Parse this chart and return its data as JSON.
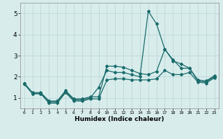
{
  "xlabel": "Humidex (Indice chaleur)",
  "xlim": [
    -0.5,
    23.5
  ],
  "ylim": [
    0.5,
    5.5
  ],
  "yticks": [
    1,
    2,
    3,
    4,
    5
  ],
  "xticks": [
    0,
    1,
    2,
    3,
    4,
    5,
    6,
    7,
    8,
    9,
    10,
    11,
    12,
    13,
    14,
    15,
    16,
    17,
    18,
    19,
    20,
    21,
    22,
    23
  ],
  "background_color": "#d8ecec",
  "grid_color": "#b8d4d4",
  "line_color": "#1a6b6b",
  "series": {
    "spike": [
      1.7,
      1.2,
      1.2,
      0.8,
      0.8,
      1.3,
      0.9,
      0.9,
      1.0,
      1.5,
      2.3,
      2.2,
      2.2,
      2.1,
      2.0,
      5.1,
      4.5,
      3.3,
      2.8,
      2.4,
      2.4,
      1.8,
      1.75,
      2.0
    ],
    "upper": [
      1.7,
      1.25,
      1.25,
      0.85,
      0.85,
      1.35,
      0.95,
      0.95,
      1.05,
      1.05,
      2.5,
      2.5,
      2.45,
      2.3,
      2.15,
      2.1,
      2.25,
      3.3,
      2.75,
      2.6,
      2.4,
      1.85,
      1.8,
      2.05
    ],
    "lower": [
      1.65,
      1.2,
      1.2,
      0.75,
      0.75,
      1.25,
      0.85,
      0.85,
      0.95,
      0.95,
      1.85,
      1.9,
      1.9,
      1.85,
      1.85,
      1.85,
      1.9,
      2.3,
      2.1,
      2.1,
      2.2,
      1.75,
      1.7,
      1.95
    ]
  }
}
